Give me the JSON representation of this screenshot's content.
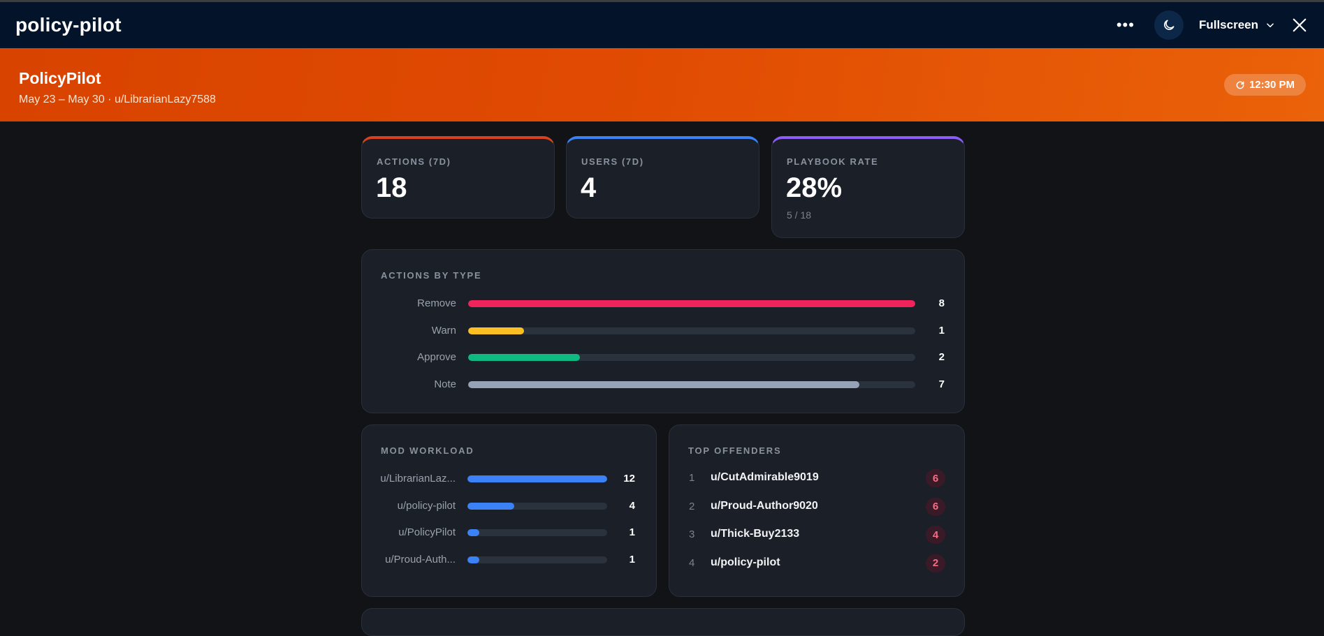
{
  "window": {
    "title": "policy-pilot",
    "more_icon": "more-horizontal-icon",
    "theme_icon": "moon-icon",
    "fullscreen_label": "Fullscreen",
    "close_icon": "close-icon"
  },
  "banner": {
    "brand": "PolicyPilot",
    "subtitle": "May 23 – May 30 · u/LibrarianLazy7588",
    "time": "12:30 PM",
    "refresh_icon": "refresh-icon"
  },
  "stats": [
    {
      "label": "ACTIONS (7D)",
      "value": "18",
      "accent": "#d9401e"
    },
    {
      "label": "USERS (7D)",
      "value": "4",
      "accent": "#3b82f6"
    },
    {
      "label": "PLAYBOOK RATE",
      "value": "28%",
      "sub": "5 / 18",
      "accent": "#8b5cf6"
    }
  ],
  "actions_by_type": {
    "title": "ACTIONS BY TYPE",
    "max": 8,
    "rows": [
      {
        "name": "Remove",
        "value": 8,
        "display": "8",
        "color": "#f0245a"
      },
      {
        "name": "Warn",
        "value": 1,
        "display": "1",
        "color": "#fbbf24"
      },
      {
        "name": "Approve",
        "value": 2,
        "display": "2",
        "color": "#10b981"
      },
      {
        "name": "Note",
        "value": 7,
        "display": "7",
        "color": "#94a3b8"
      }
    ]
  },
  "mod_workload": {
    "title": "MOD WORKLOAD",
    "max": 12,
    "color": "#3b82f6",
    "rows": [
      {
        "name": "u/LibrarianLaz...",
        "value": 12,
        "display": "12"
      },
      {
        "name": "u/policy-pilot",
        "value": 4,
        "display": "4"
      },
      {
        "name": "u/PolicyPilot",
        "value": 1,
        "display": "1"
      },
      {
        "name": "u/Proud-Auth...",
        "value": 1,
        "display": "1"
      }
    ]
  },
  "top_offenders": {
    "title": "TOP OFFENDERS",
    "rows": [
      {
        "rank": "1",
        "user": "u/CutAdmirable9019",
        "count": "6"
      },
      {
        "rank": "2",
        "user": "u/Proud-Author9020",
        "count": "6"
      },
      {
        "rank": "3",
        "user": "u/Thick-Buy2133",
        "count": "4"
      },
      {
        "rank": "4",
        "user": "u/policy-pilot",
        "count": "2"
      }
    ]
  }
}
